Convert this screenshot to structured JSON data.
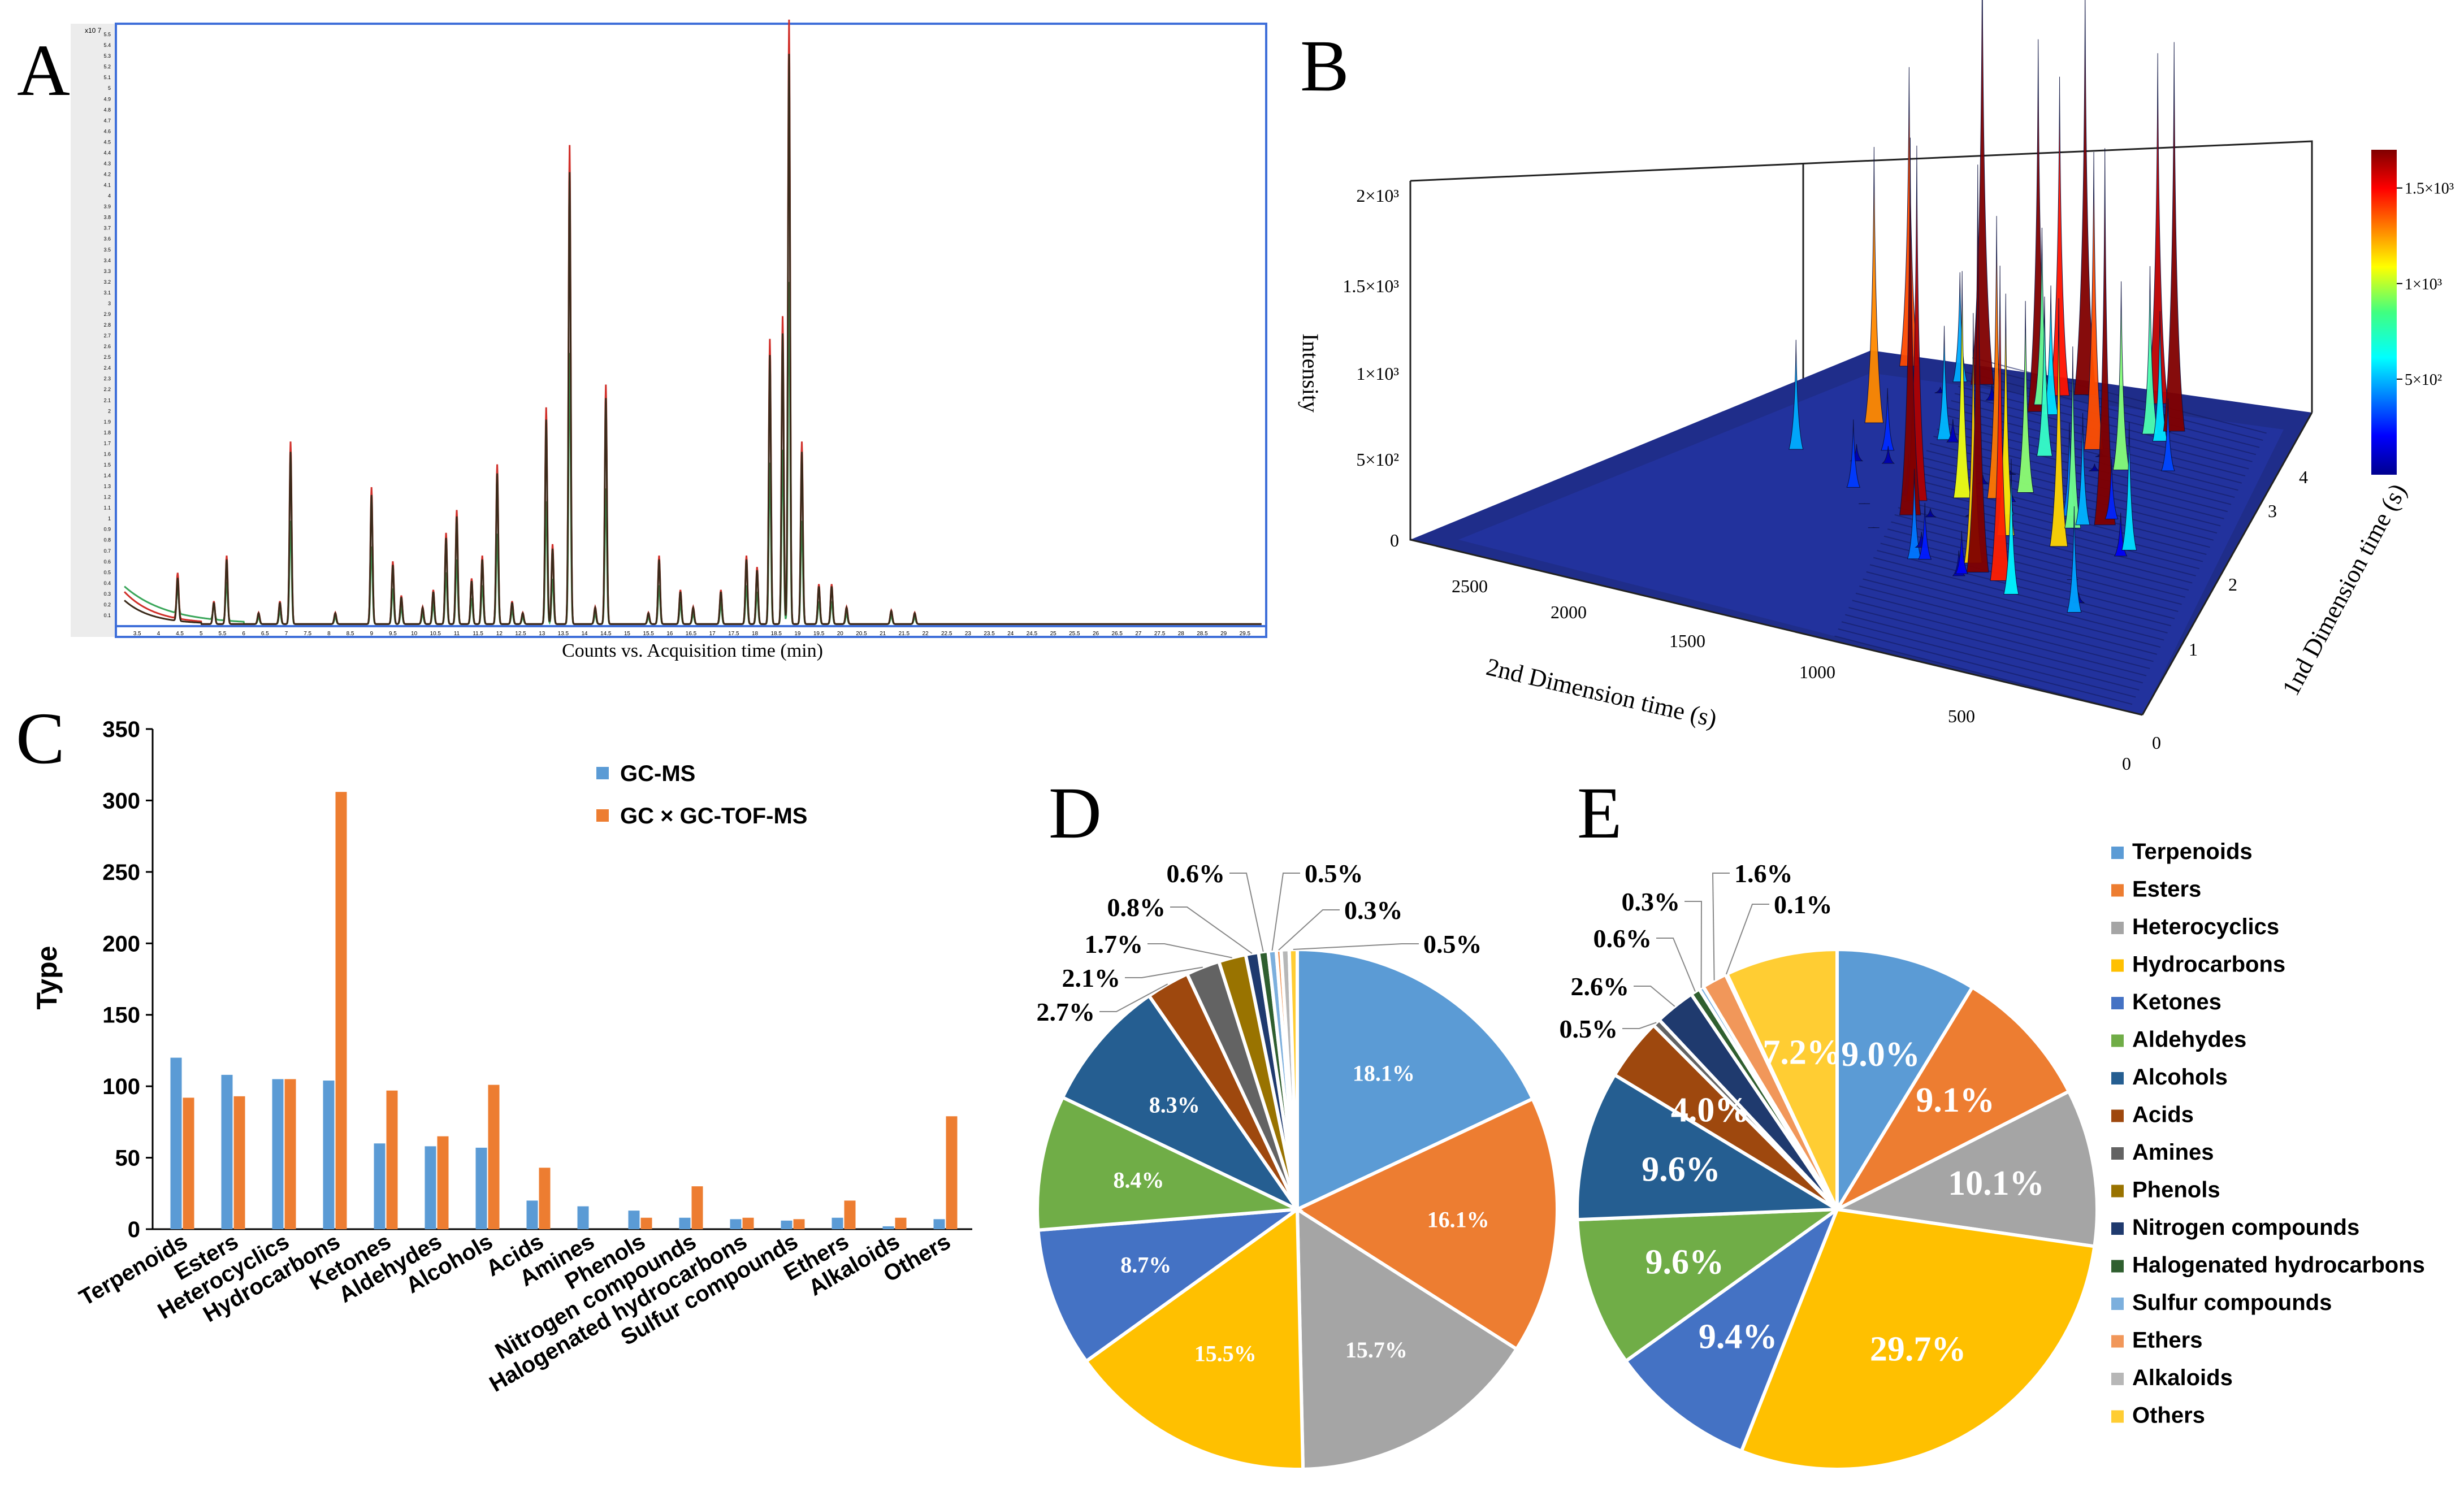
{
  "panels": {
    "A": {
      "letter": "A",
      "xlabel": "Counts vs. Acquisition time (min)",
      "y_exponent": "x10 7"
    },
    "B": {
      "letter": "B",
      "zlabel": "Intensity",
      "xlabel": "2nd Dimension time (s)",
      "ylabel": "1nd Dimension time (s)"
    },
    "C": {
      "letter": "C"
    },
    "D": {
      "letter": "D"
    },
    "E": {
      "letter": "E"
    }
  },
  "colors": {
    "Terpenoids": "#5b9bd5",
    "Esters": "#ed7d31",
    "Heterocyclics": "#a5a5a5",
    "Hydrocarbons": "#ffc000",
    "Ketones": "#4472c4",
    "Aldehydes": "#70ad47",
    "Alcohols": "#255e91",
    "Acids": "#9e480e",
    "Amines": "#636363",
    "Phenols": "#997300",
    "Nitrogen compounds": "#1f3a6e",
    "Halogenated hydrocarbons": "#2f5f2f",
    "Sulfur compounds": "#7cafdd",
    "Ethers": "#f1975a",
    "Alkaloids": "#b7b7b7",
    "Others": "#ffcd33",
    "gcms": "#5b9bd5",
    "gcxgc": "#ed7d31",
    "trace_red": "#c0392b",
    "trace_dark": "#3a2a1a"
  },
  "chart_data": [
    {
      "id": "A",
      "type": "line",
      "title": "",
      "xlabel": "Counts vs. Acquisition time (min)",
      "ylabel": "",
      "xlim": [
        3.0,
        30.0
      ],
      "ylim": [
        0,
        5.6
      ],
      "x_ticks": [
        "3.5",
        "4",
        "4.5",
        "5",
        "5.5",
        "6",
        "6.5",
        "7",
        "7.5",
        "8",
        "8.5",
        "9",
        "9.5",
        "10",
        "10.5",
        "11",
        "11.5",
        "12",
        "12.5",
        "13",
        "13.5",
        "14",
        "14.5",
        "15",
        "15.5",
        "16",
        "16.5",
        "17",
        "17.5",
        "18",
        "18.5",
        "19",
        "19.5",
        "20",
        "20.5",
        "21",
        "21.5",
        "22",
        "22.5",
        "23",
        "23.5",
        "24",
        "24.5",
        "25",
        "25.5",
        "26",
        "26.5",
        "27",
        "27.5",
        "28",
        "28.5",
        "29",
        "29.5"
      ],
      "y_ticks": [
        "0.1",
        "0.2",
        "0.3",
        "0.4",
        "0.5",
        "0.6",
        "0.7",
        "0.8",
        "0.9",
        "1",
        "1.1",
        "1.2",
        "1.3",
        "1.4",
        "1.5",
        "1.6",
        "1.7",
        "1.8",
        "1.9",
        "2",
        "2.1",
        "2.2",
        "2.3",
        "2.4",
        "2.5",
        "2.6",
        "2.7",
        "2.8",
        "2.9",
        "3",
        "3.1",
        "3.2",
        "3.3",
        "3.4",
        "3.5",
        "3.6",
        "3.7",
        "3.8",
        "3.9",
        "4",
        "4.1",
        "4.2",
        "4.3",
        "4.4",
        "4.5",
        "4.6",
        "4.7",
        "4.8",
        "4.9",
        "5",
        "5.1",
        "5.2",
        "5.3",
        "5.4",
        "5.5"
      ],
      "peaks": [
        [
          4.45,
          0.4
        ],
        [
          5.3,
          0.2
        ],
        [
          5.6,
          0.6
        ],
        [
          6.35,
          0.1
        ],
        [
          6.85,
          0.2
        ],
        [
          7.1,
          1.6
        ],
        [
          8.15,
          0.1
        ],
        [
          9.0,
          1.2
        ],
        [
          9.5,
          0.55
        ],
        [
          9.7,
          0.25
        ],
        [
          10.2,
          0.15
        ],
        [
          10.45,
          0.3
        ],
        [
          10.75,
          0.8
        ],
        [
          11.0,
          1.0
        ],
        [
          11.35,
          0.4
        ],
        [
          11.6,
          0.6
        ],
        [
          11.95,
          1.4
        ],
        [
          12.3,
          0.2
        ],
        [
          12.55,
          0.1
        ],
        [
          13.1,
          1.9
        ],
        [
          13.25,
          0.7
        ],
        [
          13.65,
          4.2
        ],
        [
          14.25,
          0.15
        ],
        [
          14.5,
          2.1
        ],
        [
          15.5,
          0.1
        ],
        [
          15.75,
          0.6
        ],
        [
          16.25,
          0.3
        ],
        [
          16.55,
          0.15
        ],
        [
          17.2,
          0.3
        ],
        [
          17.8,
          0.6
        ],
        [
          18.05,
          0.5
        ],
        [
          18.35,
          2.5
        ],
        [
          18.65,
          2.7
        ],
        [
          18.8,
          5.3
        ],
        [
          19.1,
          1.6
        ],
        [
          19.5,
          0.35
        ],
        [
          19.8,
          0.35
        ],
        [
          20.15,
          0.15
        ],
        [
          21.2,
          0.12
        ],
        [
          21.75,
          0.1
        ]
      ]
    },
    {
      "id": "B",
      "type": "surface3d",
      "zlabel": "Intensity",
      "xlabel": "2nd Dimension time (s)",
      "ylabel": "1nd Dimension time (s)",
      "z_ticks": [
        "0",
        "5×10²",
        "1×10³",
        "1.5×10³",
        "2×10³"
      ],
      "x_ticks": [
        "2500",
        "2000",
        "1500",
        "1000",
        "500",
        "0"
      ],
      "y_ticks": [
        "0",
        "1",
        "2",
        "3",
        "4"
      ],
      "colorbar_ticks": [
        "5×10²",
        "1×10³",
        "1.5×10³"
      ],
      "colorbar_range": [
        0,
        1700
      ]
    },
    {
      "id": "C",
      "type": "bar",
      "ylabel": "Type",
      "ylim": [
        0,
        350
      ],
      "y_ticks": [
        0,
        50,
        100,
        150,
        200,
        250,
        300,
        350
      ],
      "categories": [
        "Terpenoids",
        "Esters",
        "Heterocyclics",
        "Hydrocarbons",
        "Ketones",
        "Aldehydes",
        "Alcohols",
        "Acids",
        "Amines",
        "Phenols",
        "Nitrogen compounds",
        "Halogenated hydrocarbons",
        "Sulfur compounds",
        "Ethers",
        "Alkaloids",
        "Others"
      ],
      "series": [
        {
          "name": "GC-MS",
          "values": [
            120,
            108,
            105,
            104,
            60,
            58,
            57,
            20,
            16,
            13,
            8,
            7,
            6,
            8,
            2,
            7
          ]
        },
        {
          "name": "GC × GC-TOF-MS",
          "values": [
            92,
            93,
            105,
            306,
            97,
            65,
            101,
            43,
            0,
            8,
            30,
            8,
            7,
            20,
            8,
            79
          ]
        }
      ],
      "legend_position": "top-right"
    },
    {
      "id": "D",
      "type": "pie",
      "labels": [
        "Terpenoids",
        "Esters",
        "Heterocyclics",
        "Hydrocarbons",
        "Ketones",
        "Aldehydes",
        "Alcohols",
        "Acids",
        "Amines",
        "Phenols",
        "Nitrogen compounds",
        "Halogenated hydrocarbons",
        "Sulfur compounds",
        "Ethers",
        "Alkaloids",
        "Others"
      ],
      "values": [
        18.1,
        16.1,
        15.7,
        15.5,
        8.7,
        8.4,
        8.3,
        2.7,
        2.1,
        1.7,
        0.8,
        0.6,
        0.5,
        0.3,
        0.5,
        0.5
      ],
      "value_labels": [
        "18.1%",
        "16.1%",
        "15.7%",
        "15.5%",
        "8.7%",
        "8.4%",
        "8.3%",
        "2.7%",
        "2.1%",
        "1.7%",
        "0.8%",
        "0.6%",
        "0.5%",
        "0.3%",
        "0.5%",
        "0.5%"
      ]
    },
    {
      "id": "E",
      "type": "pie",
      "labels": [
        "Terpenoids",
        "Esters",
        "Heterocyclics",
        "Hydrocarbons",
        "Ketones",
        "Aldehydes",
        "Alcohols",
        "Acids",
        "Amines",
        "Phenols",
        "Nitrogen compounds",
        "Halogenated hydrocarbons",
        "Sulfur compounds",
        "Ethers",
        "Alkaloids",
        "Others"
      ],
      "values": [
        9.0,
        9.1,
        10.1,
        29.7,
        9.4,
        9.6,
        9.6,
        4.0,
        0.5,
        0.0,
        2.6,
        0.6,
        0.3,
        1.6,
        0.1,
        7.2
      ],
      "value_labels": [
        "9.0%",
        "9.1%",
        "10.1%",
        "29.7%",
        "9.4%",
        "9.6%",
        "9.6%",
        "4.0%",
        "0.5%",
        "",
        "2.6%",
        "0.6%",
        "0.3%",
        "1.6%",
        "0.1%",
        "7.2%"
      ],
      "legend_position": "right"
    }
  ]
}
